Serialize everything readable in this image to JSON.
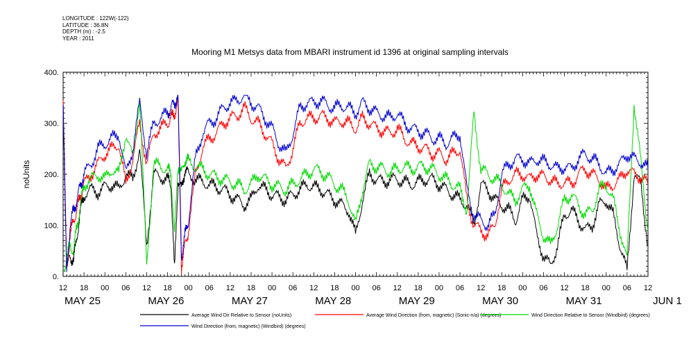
{
  "meta": {
    "longitude": "LONGITUDE : 122W(-122)",
    "latitude": "LATITUDE : 36.8N",
    "depth": "DEPTH (m) : -2.5",
    "year": "YEAR : 2011"
  },
  "chart_data": {
    "type": "line",
    "title": "Mooring M1 Metsys data from MBARI instrument id 1396 at original sampling intervals",
    "ylabel": "noUnits",
    "ylim": [
      0,
      400
    ],
    "y_ticks": [
      0,
      100,
      200,
      300,
      400
    ],
    "xlim_hours": [
      0,
      168
    ],
    "x_tick_labels": [
      "12",
      "18",
      "00",
      "06",
      "12",
      "18",
      "00",
      "06",
      "12",
      "18",
      "00",
      "06",
      "12",
      "18",
      "00",
      "06",
      "12",
      "18",
      "00",
      "06",
      "12",
      "18",
      "00",
      "06",
      "12",
      "18",
      "00",
      "06",
      "12"
    ],
    "date_labels": [
      "MAY 25",
      "MAY 26",
      "MAY 27",
      "MAY 28",
      "MAY 29",
      "MAY 30",
      "MAY 31",
      "JUN  1"
    ],
    "grid": false,
    "legend_placement": "bottom",
    "series": [
      {
        "name": "Average Wind Dir Relative to Sensor (noUnits)",
        "color": "#000000",
        "x": [
          0,
          1,
          2,
          3,
          4,
          5,
          6,
          8,
          10,
          12,
          14,
          16,
          18,
          20,
          22,
          24,
          26,
          28,
          30,
          31,
          32,
          33,
          34,
          35,
          36,
          38,
          40,
          42,
          44,
          46,
          48,
          50,
          52,
          54,
          56,
          58,
          60,
          62,
          64,
          66,
          68,
          70,
          72,
          74,
          76,
          78,
          80,
          82,
          84,
          86,
          88,
          90,
          92,
          94,
          96,
          98,
          100,
          102,
          104,
          106,
          108,
          110,
          112,
          114,
          116,
          118,
          120,
          122,
          124,
          126,
          128,
          130,
          132,
          134,
          136,
          138,
          140,
          142,
          144,
          146,
          148,
          150,
          152,
          154,
          156,
          158,
          160,
          162,
          164,
          166,
          168
        ],
        "values": [
          340,
          20,
          40,
          30,
          80,
          130,
          160,
          170,
          165,
          175,
          180,
          170,
          200,
          190,
          250,
          60,
          200,
          195,
          190,
          180,
          10,
          190,
          170,
          210,
          200,
          190,
          185,
          180,
          175,
          170,
          160,
          150,
          140,
          150,
          180,
          170,
          160,
          155,
          150,
          160,
          170,
          180,
          175,
          170,
          160,
          150,
          140,
          130,
          80,
          150,
          200,
          190,
          185,
          190,
          190,
          185,
          180,
          185,
          190,
          190,
          180,
          170,
          160,
          150,
          140,
          100,
          180,
          170,
          150,
          140,
          130,
          110,
          150,
          160,
          80,
          40,
          20,
          60,
          120,
          130,
          110,
          90,
          100,
          140,
          150,
          120,
          60,
          10,
          200,
          180,
          60
        ]
      },
      {
        "name": "Average Wind Direction (from, magnetic) (Sonic-n/a) (degrees)",
        "color": "#ff0000",
        "x": [
          0,
          1,
          2,
          3,
          4,
          5,
          6,
          8,
          10,
          12,
          14,
          16,
          18,
          20,
          22,
          24,
          26,
          28,
          30,
          31,
          32,
          33,
          34,
          35,
          36,
          38,
          40,
          42,
          44,
          46,
          48,
          50,
          52,
          54,
          56,
          58,
          60,
          62,
          64,
          66,
          68,
          70,
          72,
          74,
          76,
          78,
          80,
          82,
          84,
          86,
          88,
          90,
          92,
          94,
          96,
          98,
          100,
          102,
          104,
          106,
          108,
          110,
          112,
          114,
          116,
          118,
          120,
          122,
          124,
          126,
          128,
          130,
          132,
          134,
          136,
          138,
          140,
          142,
          144,
          146,
          148,
          150,
          152,
          154,
          156,
          158,
          160,
          162,
          164,
          166,
          168
        ],
        "values": [
          345,
          10,
          80,
          110,
          130,
          160,
          180,
          200,
          220,
          240,
          250,
          260,
          180,
          230,
          300,
          220,
          280,
          290,
          300,
          310,
          320,
          340,
          20,
          60,
          90,
          200,
          250,
          270,
          280,
          300,
          310,
          315,
          330,
          310,
          300,
          280,
          260,
          230,
          210,
          250,
          300,
          310,
          310,
          315,
          310,
          300,
          305,
          300,
          290,
          310,
          300,
          290,
          285,
          280,
          290,
          270,
          260,
          255,
          250,
          240,
          240,
          230,
          240,
          250,
          150,
          100,
          90,
          80,
          100,
          170,
          190,
          200,
          200,
          190,
          200,
          195,
          190,
          180,
          185,
          180,
          200,
          210,
          200,
          190,
          170,
          180,
          190,
          210,
          200,
          195,
          180
        ]
      },
      {
        "name": "Wind Direction Relative to Sensor (Windbird) (degrees)",
        "color": "#00d800",
        "x": [
          0,
          1,
          2,
          3,
          4,
          5,
          6,
          8,
          10,
          12,
          14,
          16,
          18,
          20,
          22,
          24,
          26,
          28,
          30,
          31,
          32,
          33,
          34,
          35,
          36,
          38,
          40,
          42,
          44,
          46,
          48,
          50,
          52,
          54,
          56,
          58,
          60,
          62,
          64,
          66,
          68,
          70,
          72,
          74,
          76,
          78,
          80,
          82,
          84,
          86,
          88,
          90,
          92,
          94,
          96,
          98,
          100,
          102,
          104,
          106,
          108,
          110,
          112,
          114,
          116,
          118,
          120,
          122,
          124,
          126,
          128,
          130,
          132,
          134,
          136,
          138,
          140,
          142,
          144,
          146,
          148,
          150,
          152,
          154,
          156,
          158,
          160,
          162,
          164,
          166,
          168
        ],
        "values": [
          0,
          40,
          60,
          50,
          100,
          140,
          180,
          190,
          200,
          190,
          210,
          200,
          280,
          230,
          350,
          20,
          220,
          215,
          210,
          200,
          80,
          220,
          200,
          230,
          225,
          215,
          210,
          200,
          195,
          190,
          185,
          180,
          170,
          180,
          200,
          190,
          180,
          175,
          170,
          180,
          190,
          200,
          210,
          205,
          195,
          180,
          170,
          150,
          100,
          170,
          220,
          215,
          210,
          205,
          210,
          215,
          210,
          215,
          215,
          210,
          200,
          190,
          180,
          170,
          130,
          320,
          210,
          200,
          190,
          180,
          160,
          150,
          170,
          180,
          120,
          80,
          60,
          100,
          150,
          160,
          140,
          120,
          130,
          170,
          180,
          150,
          90,
          30,
          340,
          220,
          90
        ]
      },
      {
        "name": "Wind Direction (from, magnetic) (Windbird) (degrees)",
        "color": "#0000cc",
        "x": [
          0,
          1,
          2,
          3,
          4,
          5,
          6,
          8,
          10,
          12,
          14,
          16,
          18,
          20,
          22,
          24,
          26,
          28,
          30,
          31,
          32,
          33,
          34,
          35,
          36,
          38,
          40,
          42,
          44,
          46,
          48,
          50,
          52,
          54,
          56,
          58,
          60,
          62,
          64,
          66,
          68,
          70,
          72,
          74,
          76,
          78,
          80,
          82,
          84,
          86,
          88,
          90,
          92,
          94,
          96,
          98,
          100,
          102,
          104,
          106,
          108,
          110,
          112,
          114,
          116,
          118,
          120,
          122,
          124,
          126,
          128,
          130,
          132,
          134,
          136,
          138,
          140,
          142,
          144,
          146,
          148,
          150,
          152,
          154,
          156,
          158,
          160,
          162,
          164,
          166,
          168
        ],
        "values": [
          350,
          5,
          100,
          130,
          150,
          180,
          200,
          220,
          250,
          260,
          270,
          280,
          200,
          250,
          340,
          240,
          300,
          310,
          320,
          330,
          340,
          355,
          40,
          80,
          110,
          230,
          280,
          300,
          310,
          330,
          340,
          345,
          355,
          340,
          330,
          310,
          290,
          260,
          240,
          280,
          330,
          340,
          340,
          345,
          335,
          330,
          335,
          330,
          320,
          340,
          330,
          320,
          315,
          310,
          320,
          300,
          290,
          285,
          280,
          270,
          270,
          260,
          270,
          280,
          170,
          120,
          110,
          100,
          120,
          200,
          220,
          230,
          230,
          220,
          230,
          225,
          220,
          210,
          215,
          210,
          230,
          240,
          230,
          220,
          200,
          210,
          220,
          240,
          230,
          225,
          210
        ]
      }
    ]
  }
}
